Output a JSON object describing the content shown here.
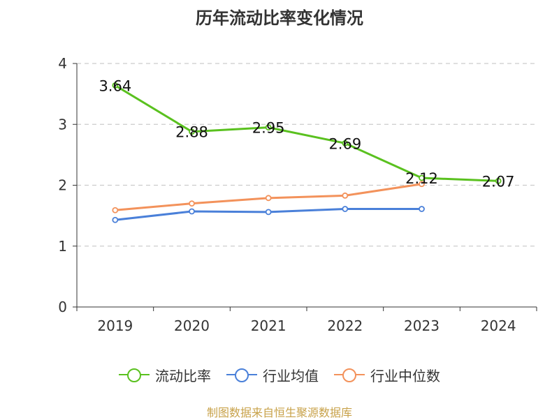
{
  "chart_data": {
    "type": "line",
    "title": "历年流动比率变化情况",
    "categories": [
      "2019",
      "2020",
      "2021",
      "2022",
      "2023",
      "2024"
    ],
    "ylim": [
      0,
      4
    ],
    "yticks": [
      0,
      1,
      2,
      3,
      4
    ],
    "grid": true,
    "legend_position": "bottom",
    "series": [
      {
        "name": "流动比率",
        "color": "#5ac11f",
        "values": [
          3.64,
          2.88,
          2.95,
          2.69,
          2.12,
          2.07
        ],
        "labels": [
          "3.64",
          "2.88",
          "2.95",
          "2.69",
          "2.12",
          "2.07"
        ]
      },
      {
        "name": "行业均值",
        "color": "#4a80d9",
        "values": [
          1.43,
          1.57,
          1.56,
          1.61,
          1.61,
          null
        ]
      },
      {
        "name": "行业中位数",
        "color": "#f3925b",
        "values": [
          1.59,
          1.7,
          1.79,
          1.83,
          2.02,
          null
        ]
      }
    ]
  },
  "source": "制图数据来自恒生聚源数据库"
}
